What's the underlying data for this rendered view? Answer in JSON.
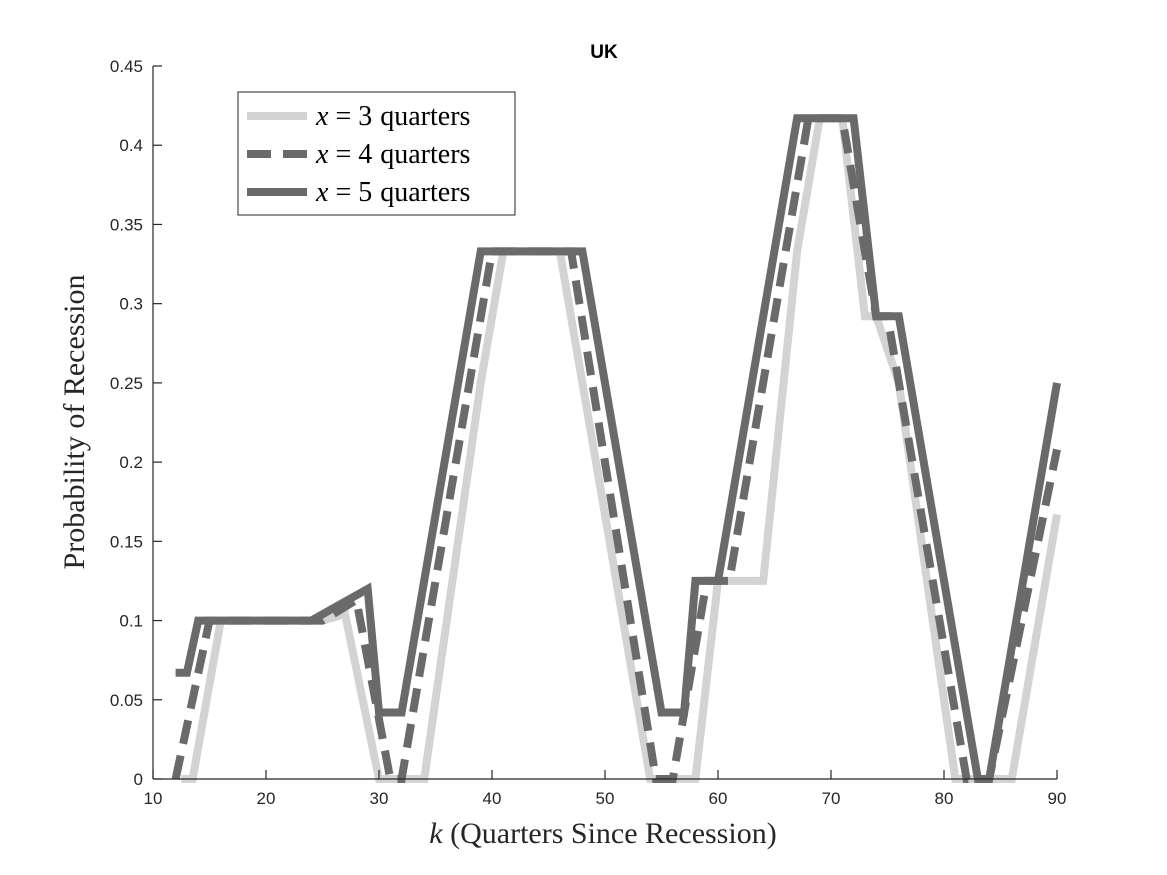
{
  "chart_data": {
    "type": "line",
    "title": "UK",
    "xlabel": {
      "var": "k",
      "text": "(Quarters Since Recession)"
    },
    "ylabel": "Probability of Recession",
    "xlim": [
      10,
      90
    ],
    "ylim": [
      0,
      0.45
    ],
    "xticks": [
      "10",
      "20",
      "30",
      "40",
      "50",
      "60",
      "70",
      "80",
      "90"
    ],
    "yticks": [
      "0",
      "0.05",
      "0.1",
      "0.15",
      "0.2",
      "0.25",
      "0.3",
      "0.35",
      "0.4",
      "0.45"
    ],
    "grid": false,
    "legend_position": "top-left",
    "series": [
      {
        "var": "x",
        "eq": " = ",
        "num": "3",
        "unit": "quarters",
        "color": "#d3d3d3",
        "dash": "solid",
        "x": [
          12.5,
          13.5,
          16,
          25,
          27,
          30,
          31,
          33,
          34,
          39,
          41,
          46,
          48,
          54,
          55,
          57,
          58,
          60,
          62,
          64,
          67,
          69,
          71,
          73,
          74,
          76,
          81,
          82,
          83,
          84,
          86,
          90
        ],
        "y": [
          0,
          0,
          0.1,
          0.1,
          0.104,
          0,
          0,
          0,
          0,
          0.25,
          0.333,
          0.333,
          0.25,
          0,
          0,
          0,
          0,
          0.125,
          0.125,
          0.125,
          0.333,
          0.417,
          0.417,
          0.292,
          0.292,
          0.25,
          0,
          0,
          0,
          0,
          0,
          0.167
        ]
      },
      {
        "var": "x",
        "eq": " = ",
        "num": "4",
        "unit": "quarters",
        "color": "#6a6a6a",
        "dash": "dashed",
        "x": [
          12,
          15,
          25,
          28,
          31,
          32,
          40,
          47,
          54.5,
          56,
          59,
          61,
          68,
          71,
          73,
          74,
          75,
          82,
          84,
          90
        ],
        "y": [
          0,
          0.1,
          0.1,
          0.113,
          0,
          0,
          0.333,
          0.333,
          0,
          0,
          0.125,
          0.125,
          0.417,
          0.417,
          0.333,
          0.292,
          0.292,
          0,
          0,
          0.208
        ]
      },
      {
        "var": "x",
        "eq": " = ",
        "num": "5",
        "unit": "quarters",
        "color": "#6a6a6a",
        "dash": "solid",
        "x": [
          12,
          13,
          14,
          24,
          29,
          30,
          31,
          32,
          39,
          48,
          55,
          56,
          57,
          58,
          60,
          67,
          72,
          74,
          76,
          83,
          84,
          90
        ],
        "y": [
          0.067,
          0.067,
          0.1,
          0.1,
          0.12,
          0.042,
          0.042,
          0.042,
          0.333,
          0.333,
          0.042,
          0.042,
          0.042,
          0.125,
          0.125,
          0.417,
          0.417,
          0.292,
          0.292,
          0,
          0,
          0.25
        ]
      }
    ]
  }
}
